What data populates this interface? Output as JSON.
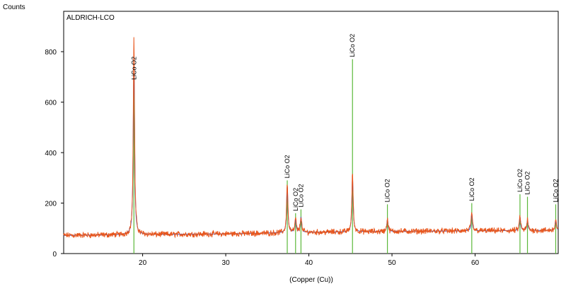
{
  "chart_data": {
    "type": "line",
    "ylabel": "Counts",
    "xlabel": "(Copper (Cu))",
    "sample_label": "ALDRICH-LCO",
    "xlim": [
      10.5,
      70
    ],
    "ylim": [
      0,
      960
    ],
    "xticks": [
      20,
      30,
      40,
      50,
      60
    ],
    "yticks": [
      0,
      200,
      400,
      600,
      800
    ],
    "background_level": [
      [
        10.5,
        72
      ],
      [
        20,
        75
      ],
      [
        30,
        78
      ],
      [
        40,
        84
      ],
      [
        50,
        88
      ],
      [
        60,
        90
      ],
      [
        70,
        92
      ]
    ],
    "peaks": [
      {
        "x": 18.95,
        "height": 870
      },
      {
        "x": 37.4,
        "height": 285
      },
      {
        "x": 38.4,
        "height": 140
      },
      {
        "x": 39.05,
        "height": 150
      },
      {
        "x": 45.25,
        "height": 325
      },
      {
        "x": 49.45,
        "height": 140
      },
      {
        "x": 59.6,
        "height": 165
      },
      {
        "x": 65.4,
        "height": 150
      },
      {
        "x": 66.3,
        "height": 135
      },
      {
        "x": 69.7,
        "height": 135
      }
    ],
    "reference_lines": [
      {
        "x": 18.95,
        "height": 680,
        "label": "LiCo O2"
      },
      {
        "x": 37.4,
        "height": 290,
        "label": "LiCo O2"
      },
      {
        "x": 38.4,
        "height": 160,
        "label": "LiCo O2"
      },
      {
        "x": 39.05,
        "height": 175,
        "label": "LiCo O2"
      },
      {
        "x": 45.25,
        "height": 770,
        "label": "LiCo O2"
      },
      {
        "x": 49.45,
        "height": 195,
        "label": "LiCo O2"
      },
      {
        "x": 59.6,
        "height": 200,
        "label": "LiCo O2"
      },
      {
        "x": 65.4,
        "height": 235,
        "label": "LiCo O2"
      },
      {
        "x": 66.3,
        "height": 225,
        "label": "LiCo O2"
      },
      {
        "x": 69.7,
        "height": 195,
        "label": "LiCo O2"
      }
    ],
    "grid": false,
    "colors": {
      "observed": "#e8561c",
      "calculated": "#2a4fd6",
      "reference": "#5cb83a",
      "axis": "#000000"
    }
  }
}
